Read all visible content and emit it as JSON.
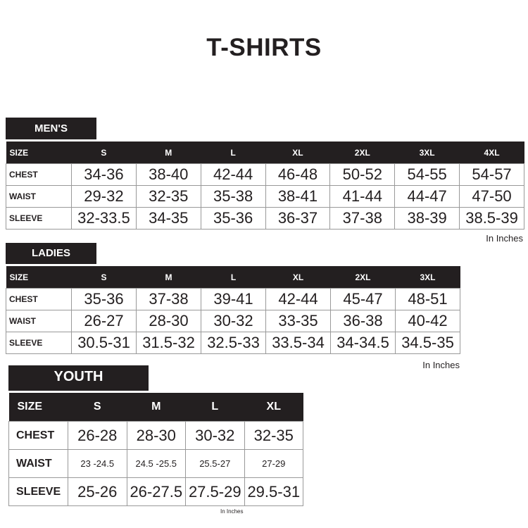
{
  "title": "T-SHIRTS",
  "tables": {
    "men": {
      "label": "MEN'S",
      "headers": [
        "SIZE",
        "S",
        "M",
        "L",
        "XL",
        "2XL",
        "3XL",
        "4XL"
      ],
      "rows": [
        [
          "CHEST",
          "34-36",
          "38-40",
          "42-44",
          "46-48",
          "50-52",
          "54-55",
          "54-57"
        ],
        [
          "WAIST",
          "29-32",
          "32-35",
          "35-38",
          "38-41",
          "41-44",
          "44-47",
          "47-50"
        ],
        [
          "SLEEVE",
          "32-33.5",
          "34-35",
          "35-36",
          "36-37",
          "37-38",
          "38-39",
          "38.5-39"
        ]
      ],
      "note": "In Inches"
    },
    "ladies": {
      "label": "LADIES",
      "headers": [
        "SIZE",
        "S",
        "M",
        "L",
        "XL",
        "2XL",
        "3XL"
      ],
      "rows": [
        [
          "CHEST",
          "35-36",
          "37-38",
          "39-41",
          "42-44",
          "45-47",
          "48-51"
        ],
        [
          "WAIST",
          "26-27",
          "28-30",
          "30-32",
          "33-35",
          "36-38",
          "40-42"
        ],
        [
          "SLEEVE",
          "30.5-31",
          "31.5-32",
          "32.5-33",
          "33.5-34",
          "34-34.5",
          "34.5-35"
        ]
      ],
      "note": "In Inches"
    },
    "youth": {
      "label": "YOUTH",
      "headers": [
        "SIZE",
        "S",
        "M",
        "L",
        "XL"
      ],
      "rows": [
        [
          "CHEST",
          "26-28",
          "28-30",
          "30-32",
          "32-35"
        ],
        [
          "WAIST",
          "23 -24.5",
          "24.5 -25.5",
          "25.5-27",
          "27-29"
        ],
        [
          "SLEEVE",
          "25-26",
          "26-27.5",
          "27.5-29",
          "29.5-31"
        ]
      ],
      "note": "In Inches"
    }
  }
}
